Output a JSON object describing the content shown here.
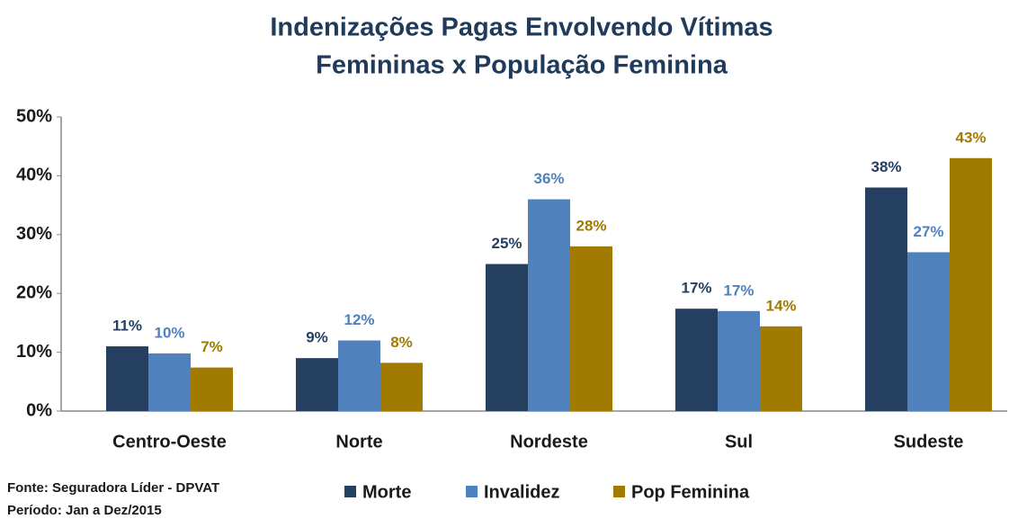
{
  "chart_data": {
    "type": "bar",
    "title": [
      "Indenizações Pagas Envolvendo Vítimas",
      "Femininas x População Feminina"
    ],
    "categories": [
      "Centro-Oeste",
      "Norte",
      "Nordeste",
      "Sul",
      "Sudeste"
    ],
    "series": [
      {
        "name": "Morte",
        "color": "#243f60",
        "values": [
          11,
          9,
          25,
          17.4,
          38
        ],
        "value_labels": [
          "11%",
          "9%",
          "25%",
          "17%",
          "38%"
        ]
      },
      {
        "name": "Invalidez",
        "color": "#4f81bd",
        "values": [
          9.8,
          12,
          36,
          17,
          27
        ],
        "value_labels": [
          "10%",
          "12%",
          "36%",
          "17%",
          "27%"
        ]
      },
      {
        "name": "Pop Feminina",
        "color": "#a07b00",
        "values": [
          7.4,
          8.2,
          28,
          14.4,
          43
        ],
        "value_labels": [
          "7%",
          "8%",
          "28%",
          "14%",
          "43%"
        ]
      }
    ],
    "ylim": [
      0,
      50
    ],
    "yticks": [
      {
        "value": 0,
        "label": "0%"
      },
      {
        "value": 10,
        "label": "10%"
      },
      {
        "value": 20,
        "label": "20%"
      },
      {
        "value": 30,
        "label": "30%"
      },
      {
        "value": 40,
        "label": "40%"
      },
      {
        "value": 50,
        "label": "50%"
      }
    ],
    "grid": false,
    "notes": [
      "Fonte: Seguradora Líder - DPVAT",
      "Período: Jan a Dez/2015"
    ]
  }
}
